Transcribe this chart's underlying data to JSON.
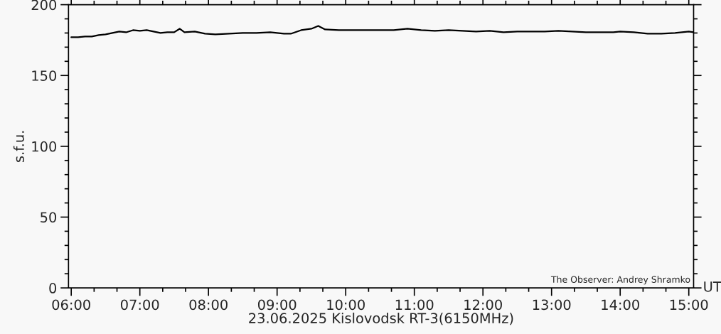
{
  "chart_data": {
    "type": "line",
    "xlabel": "23.06.2025 Kislovodsk RT-3(6150MHz)",
    "ylabel": "s.f.u.",
    "annotations": [
      "UT",
      "The Observer: Andrey Shramko"
    ],
    "x": [
      6.0,
      6.1,
      6.2,
      6.3,
      6.4,
      6.5,
      6.6,
      6.7,
      6.8,
      6.9,
      7.0,
      7.1,
      7.2,
      7.3,
      7.4,
      7.5,
      7.58,
      7.65,
      7.8,
      7.95,
      8.1,
      8.3,
      8.5,
      8.7,
      8.9,
      9.1,
      9.2,
      9.35,
      9.5,
      9.6,
      9.7,
      9.9,
      10.1,
      10.3,
      10.5,
      10.7,
      10.9,
      11.1,
      11.3,
      11.5,
      11.7,
      11.9,
      12.1,
      12.3,
      12.5,
      12.7,
      12.9,
      13.1,
      13.3,
      13.5,
      13.7,
      13.9,
      14.0,
      14.2,
      14.4,
      14.6,
      14.8,
      15.0,
      15.07
    ],
    "series": [
      {
        "color": "#000000",
        "values": [
          177,
          177,
          177.5,
          177.5,
          178.5,
          179,
          180,
          181,
          180.5,
          182,
          181.5,
          182,
          181,
          180,
          180.5,
          180.5,
          183,
          180.5,
          181,
          179.5,
          179,
          179.5,
          180,
          180,
          180.5,
          179.5,
          179.5,
          182,
          183,
          185,
          182.5,
          182,
          182,
          182,
          182,
          182,
          183,
          182,
          181.5,
          182,
          181.5,
          181,
          181.5,
          180.5,
          181,
          181,
          181,
          181.5,
          181,
          180.5,
          180.5,
          180.5,
          181,
          180.5,
          179.5,
          179.5,
          180,
          181,
          180.5
        ]
      }
    ],
    "xlim": [
      5.96,
      15.07
    ],
    "ylim": [
      0,
      200
    ],
    "xticks": [
      {
        "value": 6,
        "label": "06:00"
      },
      {
        "value": 7,
        "label": "07:00"
      },
      {
        "value": 8,
        "label": "08:00"
      },
      {
        "value": 9,
        "label": "09:00"
      },
      {
        "value": 10,
        "label": "10:00"
      },
      {
        "value": 11,
        "label": "11:00"
      },
      {
        "value": 12,
        "label": "12:00"
      },
      {
        "value": 13,
        "label": "13:00"
      },
      {
        "value": 14,
        "label": "14:00"
      },
      {
        "value": 15,
        "label": "15:00"
      }
    ],
    "yticks": [
      0,
      50,
      100,
      150,
      200
    ],
    "grid": false,
    "legend": false,
    "marker": "none",
    "line_style": "solid"
  }
}
